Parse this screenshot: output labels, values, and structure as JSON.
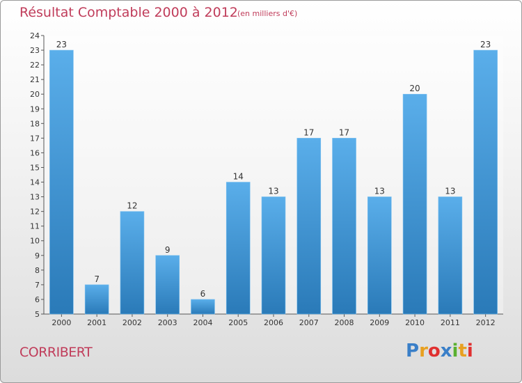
{
  "header": {
    "title": "Résultat Comptable 2000 à 2012",
    "subtitle": "(en milliers d'€)"
  },
  "footer": {
    "commune": "CORRIBERT",
    "logo": "Proxiti",
    "logo_colors": [
      "#3a7fc8",
      "#e8a020",
      "#e03030",
      "#3a7fc8",
      "#5ab030",
      "#e8a020",
      "#e03030"
    ]
  },
  "colors": {
    "bar_light": "#5aaeea",
    "bar_dark": "#2a7ab8",
    "title": "#c03c5a"
  },
  "chart_data": {
    "type": "bar",
    "title": "Résultat Comptable 2000 à 2012",
    "subtitle": "(en milliers d'€)",
    "xlabel": "",
    "ylabel": "",
    "categories": [
      "2000",
      "2001",
      "2002",
      "2003",
      "2004",
      "2005",
      "2006",
      "2007",
      "2008",
      "2009",
      "2010",
      "2011",
      "2012"
    ],
    "values": [
      23,
      7,
      12,
      9,
      6,
      14,
      13,
      17,
      17,
      13,
      20,
      13,
      23
    ],
    "ylim": [
      5,
      24
    ],
    "yticks": [
      5,
      6,
      7,
      8,
      9,
      10,
      11,
      12,
      13,
      14,
      15,
      16,
      17,
      18,
      19,
      20,
      21,
      22,
      23,
      24
    ],
    "grid": false,
    "data_labels": true
  }
}
